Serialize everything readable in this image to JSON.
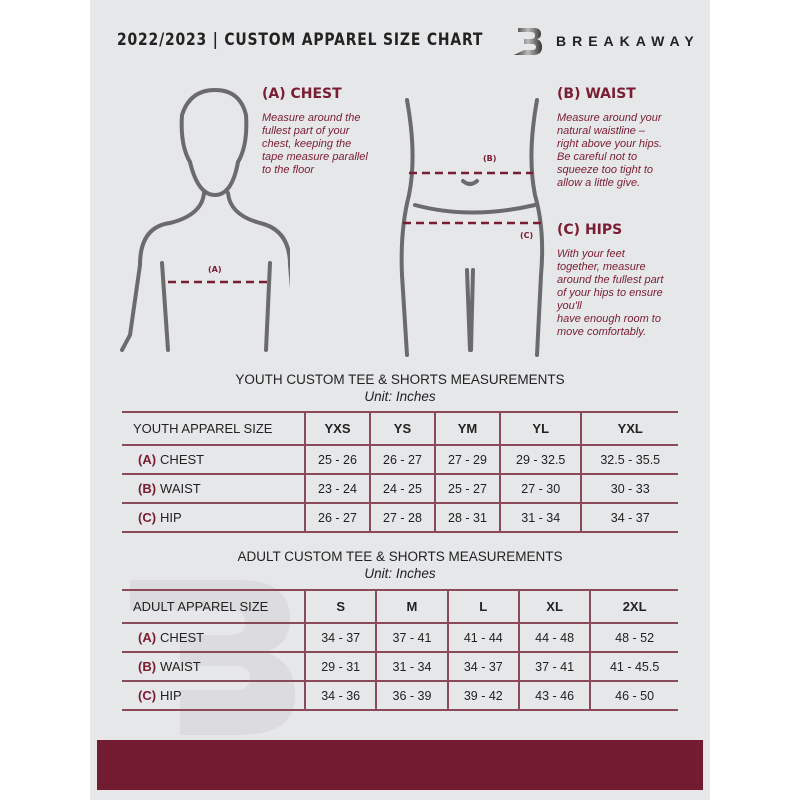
{
  "header": {
    "title": "2022/2023  |  CUSTOM APPAREL SIZE CHART",
    "brand": "BREAKAWAY",
    "logo_letter": "B"
  },
  "colors": {
    "accent": "#7a1c32",
    "background": "#e6e7e9"
  },
  "measures": {
    "chest": {
      "heading": "(A) CHEST",
      "marker": "(A)",
      "text": "Measure around the\nfullest part of your\nchest, keeping the\ntape measure parallel\nto the floor"
    },
    "waist": {
      "heading": "(B) WAIST",
      "marker": "(B)",
      "text": "Measure around your\nnatural waistline –\nright above your hips.\nBe careful not to\nsqueeze too tight to\nallow a little give."
    },
    "hips": {
      "heading": "(C) HIPS",
      "marker": "(C)",
      "text": "With your feet\ntogether, measure\naround the fullest part\nof your hips to ensure\nyou'll\nhave enough room to\nmove comfortably."
    }
  },
  "youth": {
    "title": "YOUTH CUSTOM TEE & SHORTS MEASUREMENTS",
    "unit": "Unit: Inches",
    "header": "YOUTH APPAREL SIZE",
    "sizes": [
      "YXS",
      "YS",
      "YM",
      "YL",
      "YXL"
    ],
    "rows": [
      {
        "code": "(A)",
        "label": "CHEST",
        "values": [
          "25 - 26",
          "26 - 27",
          "27 - 29",
          "29 - 32.5",
          "32.5 - 35.5"
        ]
      },
      {
        "code": "(B)",
        "label": "WAIST",
        "values": [
          "23 - 24",
          "24 - 25",
          "25 - 27",
          "27 - 30",
          "30 - 33"
        ]
      },
      {
        "code": "(C)",
        "label": "HIP",
        "values": [
          "26 - 27",
          "27 - 28",
          "28 - 31",
          "31 - 34",
          "34 - 37"
        ]
      }
    ]
  },
  "adult": {
    "title": "ADULT CUSTOM TEE & SHORTS MEASUREMENTS",
    "unit": "Unit: Inches",
    "header": "ADULT APPAREL SIZE",
    "sizes": [
      "S",
      "M",
      "L",
      "XL",
      "2XL"
    ],
    "rows": [
      {
        "code": "(A)",
        "label": "CHEST",
        "values": [
          "34 - 37",
          "37 - 41",
          "41 - 44",
          "44 - 48",
          "48 - 52"
        ]
      },
      {
        "code": "(B)",
        "label": "WAIST",
        "values": [
          "29 - 31",
          "31 - 34",
          "34 - 37",
          "37 - 41",
          "41 - 45.5"
        ]
      },
      {
        "code": "(C)",
        "label": "HIP",
        "values": [
          "34 - 36",
          "36 - 39",
          "39 - 42",
          "43 - 46",
          "46 - 50"
        ]
      }
    ]
  }
}
